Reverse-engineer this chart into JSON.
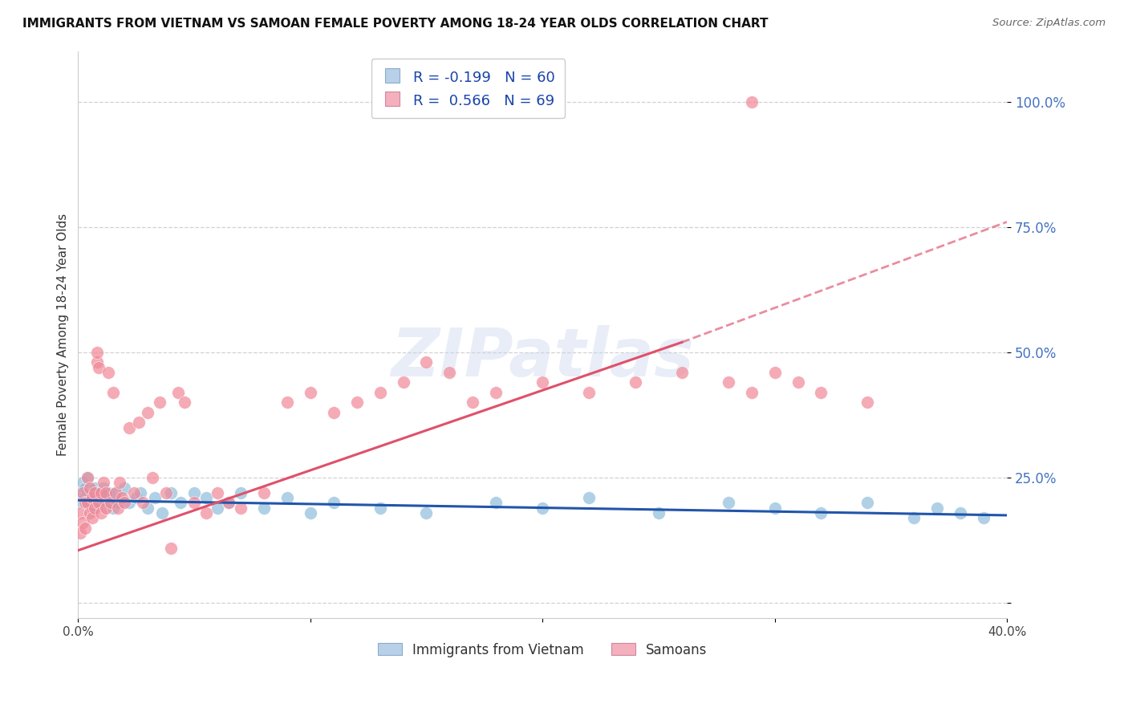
{
  "title": "IMMIGRANTS FROM VIETNAM VS SAMOAN FEMALE POVERTY AMONG 18-24 YEAR OLDS CORRELATION CHART",
  "source": "Source: ZipAtlas.com",
  "ylabel": "Female Poverty Among 18-24 Year Olds",
  "legend_label1": "Immigrants from Vietnam",
  "legend_label2": "Samoans",
  "watermark_text": "ZIPatlas",
  "xlim": [
    0.0,
    0.4
  ],
  "ylim": [
    -0.03,
    1.1
  ],
  "ytick_vals": [
    0.0,
    0.25,
    0.5,
    0.75,
    1.0
  ],
  "ytick_labels": [
    "",
    "25.0%",
    "50.0%",
    "75.0%",
    "100.0%"
  ],
  "xtick_vals": [
    0.0,
    0.1,
    0.2,
    0.3,
    0.4
  ],
  "xtick_labels": [
    "0.0%",
    "",
    "",
    "",
    "40.0%"
  ],
  "vietnam_color": "#8fbcdb",
  "samoan_color": "#f08898",
  "trend_vietnam_color": "#2255aa",
  "trend_samoan_color": "#e0506a",
  "R_vietnam_text": "-0.199",
  "N_vietnam_text": "60",
  "R_samoan_text": "0.566",
  "N_samoan_text": "69",
  "legend1_patch_color": "#b8d0e8",
  "legend2_patch_color": "#f4b0bc",
  "vietnam_x": [
    0.001,
    0.002,
    0.002,
    0.003,
    0.003,
    0.004,
    0.004,
    0.005,
    0.005,
    0.005,
    0.006,
    0.006,
    0.007,
    0.007,
    0.008,
    0.009,
    0.009,
    0.01,
    0.01,
    0.011,
    0.011,
    0.012,
    0.013,
    0.014,
    0.015,
    0.016,
    0.017,
    0.018,
    0.02,
    0.022,
    0.025,
    0.027,
    0.03,
    0.033,
    0.036,
    0.04,
    0.044,
    0.05,
    0.055,
    0.06,
    0.065,
    0.07,
    0.08,
    0.09,
    0.1,
    0.11,
    0.13,
    0.15,
    0.18,
    0.2,
    0.22,
    0.25,
    0.28,
    0.3,
    0.32,
    0.34,
    0.36,
    0.37,
    0.38,
    0.39
  ],
  "vietnam_y": [
    0.22,
    0.24,
    0.2,
    0.23,
    0.21,
    0.25,
    0.22,
    0.23,
    0.2,
    0.21,
    0.22,
    0.19,
    0.21,
    0.23,
    0.2,
    0.22,
    0.21,
    0.2,
    0.22,
    0.21,
    0.23,
    0.2,
    0.22,
    0.21,
    0.19,
    0.22,
    0.2,
    0.21,
    0.23,
    0.2,
    0.21,
    0.22,
    0.19,
    0.21,
    0.18,
    0.22,
    0.2,
    0.22,
    0.21,
    0.19,
    0.2,
    0.22,
    0.19,
    0.21,
    0.18,
    0.2,
    0.19,
    0.18,
    0.2,
    0.19,
    0.21,
    0.18,
    0.2,
    0.19,
    0.18,
    0.2,
    0.17,
    0.19,
    0.18,
    0.17
  ],
  "samoan_x": [
    0.001,
    0.001,
    0.002,
    0.002,
    0.003,
    0.003,
    0.004,
    0.004,
    0.005,
    0.005,
    0.006,
    0.006,
    0.007,
    0.007,
    0.008,
    0.008,
    0.009,
    0.009,
    0.01,
    0.01,
    0.011,
    0.012,
    0.012,
    0.013,
    0.014,
    0.015,
    0.016,
    0.017,
    0.018,
    0.019,
    0.02,
    0.022,
    0.024,
    0.026,
    0.028,
    0.03,
    0.032,
    0.035,
    0.038,
    0.04,
    0.043,
    0.046,
    0.05,
    0.055,
    0.06,
    0.065,
    0.07,
    0.08,
    0.09,
    0.1,
    0.11,
    0.12,
    0.13,
    0.14,
    0.15,
    0.16,
    0.17,
    0.18,
    0.2,
    0.22,
    0.24,
    0.26,
    0.28,
    0.29,
    0.3,
    0.31,
    0.32,
    0.34,
    0.29
  ],
  "samoan_y": [
    0.18,
    0.14,
    0.22,
    0.16,
    0.2,
    0.15,
    0.25,
    0.2,
    0.23,
    0.18,
    0.21,
    0.17,
    0.22,
    0.19,
    0.48,
    0.5,
    0.47,
    0.2,
    0.22,
    0.18,
    0.24,
    0.22,
    0.19,
    0.46,
    0.2,
    0.42,
    0.22,
    0.19,
    0.24,
    0.21,
    0.2,
    0.35,
    0.22,
    0.36,
    0.2,
    0.38,
    0.25,
    0.4,
    0.22,
    0.11,
    0.42,
    0.4,
    0.2,
    0.18,
    0.22,
    0.2,
    0.19,
    0.22,
    0.4,
    0.42,
    0.38,
    0.4,
    0.42,
    0.44,
    0.48,
    0.46,
    0.4,
    0.42,
    0.44,
    0.42,
    0.44,
    0.46,
    0.44,
    0.42,
    0.46,
    0.44,
    0.42,
    0.4,
    1.0
  ],
  "viet_trend_x0": 0.0,
  "viet_trend_x1": 0.4,
  "viet_trend_y0": 0.205,
  "viet_trend_y1": 0.175,
  "sam_trend_x0": 0.0,
  "sam_trend_x1": 0.26,
  "sam_trend_dash_x0": 0.26,
  "sam_trend_dash_x1": 0.4,
  "sam_trend_y0": 0.105,
  "sam_trend_y1": 0.52,
  "sam_trend_ydash1": 0.76
}
